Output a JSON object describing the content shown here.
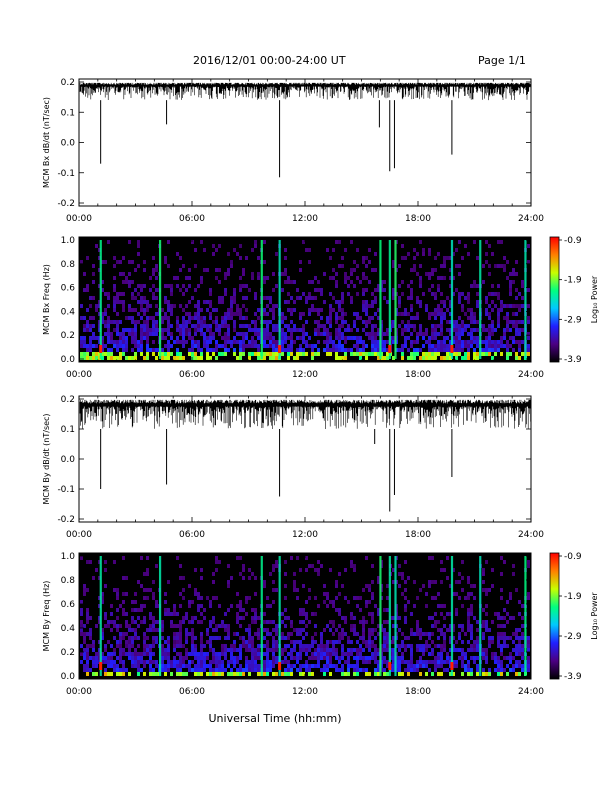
{
  "header": {
    "date_range": "2016/12/01   00:00-24:00 UT",
    "page_label": "Page 1/1"
  },
  "footer": {
    "xlabel": "Universal Time (hh:mm)"
  },
  "colorbar": {
    "label": "Log₁₀ Power",
    "ticks": [
      "-0.9",
      "-1.9",
      "-2.9",
      "-3.9"
    ],
    "range": [
      -3.9,
      -0.9
    ],
    "colors": [
      "#000000",
      "#4b0082",
      "#2020ff",
      "#00c8ff",
      "#00ff80",
      "#c8ff00",
      "#ff8000",
      "#ff0000"
    ]
  },
  "chart_data": [
    {
      "type": "line",
      "ylabel": "MCM Bx dB/dt (nT/sec)",
      "xlim": [
        "00:00",
        "24:00"
      ],
      "ylim": [
        -0.2,
        0.2
      ],
      "x_ticks": [
        "00:00",
        "06:00",
        "12:00",
        "18:00",
        "24:00"
      ],
      "y_ticks": [
        "0.2",
        "0.1",
        "0.0",
        "-0.1",
        "-0.2"
      ],
      "x_unit": "hours",
      "series": [
        {
          "baseline_range": [
            0.14,
            0.2
          ],
          "spikes": [
            {
              "x": 1.15,
              "y": -0.07
            },
            {
              "x": 4.65,
              "y": 0.06
            },
            {
              "x": 10.65,
              "y": -0.115
            },
            {
              "x": 15.95,
              "y": 0.05
            },
            {
              "x": 16.5,
              "y": -0.095
            },
            {
              "x": 16.75,
              "y": -0.085
            },
            {
              "x": 19.8,
              "y": -0.04
            }
          ]
        }
      ]
    },
    {
      "type": "heatmap",
      "ylabel": "MCM Bx Freq (Hz)",
      "xlim": [
        "00:00",
        "24:00"
      ],
      "ylim": [
        0.0,
        1.0
      ],
      "x_ticks": [
        "00:00",
        "06:00",
        "12:00",
        "18:00",
        "24:00"
      ],
      "y_ticks": [
        "1.0",
        "0.8",
        "0.6",
        "0.4",
        "0.2",
        "0.0"
      ],
      "z_range": [
        -3.9,
        -0.9
      ],
      "bright_columns_hours": [
        1.15,
        4.3,
        9.7,
        10.65,
        16.0,
        16.5,
        16.8,
        19.8,
        21.3,
        23.7
      ],
      "red_spots_hours": [
        1.15,
        10.65,
        16.5,
        19.8
      ]
    },
    {
      "type": "line",
      "ylabel": "MCM By dB/dt (nT/sec)",
      "xlim": [
        "00:00",
        "24:00"
      ],
      "ylim": [
        -0.2,
        0.2
      ],
      "x_ticks": [
        "00:00",
        "06:00",
        "12:00",
        "18:00",
        "24:00"
      ],
      "y_ticks": [
        "0.2",
        "0.1",
        "0.0",
        "-0.1",
        "-0.2"
      ],
      "x_unit": "hours",
      "series": [
        {
          "baseline_range": [
            0.1,
            0.2
          ],
          "spikes": [
            {
              "x": 1.15,
              "y": -0.1
            },
            {
              "x": 4.65,
              "y": -0.085
            },
            {
              "x": 10.65,
              "y": -0.125
            },
            {
              "x": 15.7,
              "y": 0.05
            },
            {
              "x": 16.5,
              "y": -0.175
            },
            {
              "x": 16.75,
              "y": -0.12
            },
            {
              "x": 19.8,
              "y": -0.06
            }
          ]
        }
      ]
    },
    {
      "type": "heatmap",
      "ylabel": "MCM By Freq (Hz)",
      "xlim": [
        "00:00",
        "24:00"
      ],
      "ylim": [
        0.0,
        1.0
      ],
      "x_ticks": [
        "00:00",
        "06:00",
        "12:00",
        "18:00",
        "24:00"
      ],
      "y_ticks": [
        "1.0",
        "0.8",
        "0.6",
        "0.4",
        "0.2",
        "0.0"
      ],
      "z_range": [
        -3.9,
        -0.9
      ],
      "bright_columns_hours": [
        1.15,
        4.3,
        9.7,
        10.65,
        16.0,
        16.5,
        16.8,
        19.8,
        21.3,
        23.7
      ],
      "red_spots_hours": [
        1.15,
        10.65,
        16.5,
        19.8
      ]
    }
  ]
}
